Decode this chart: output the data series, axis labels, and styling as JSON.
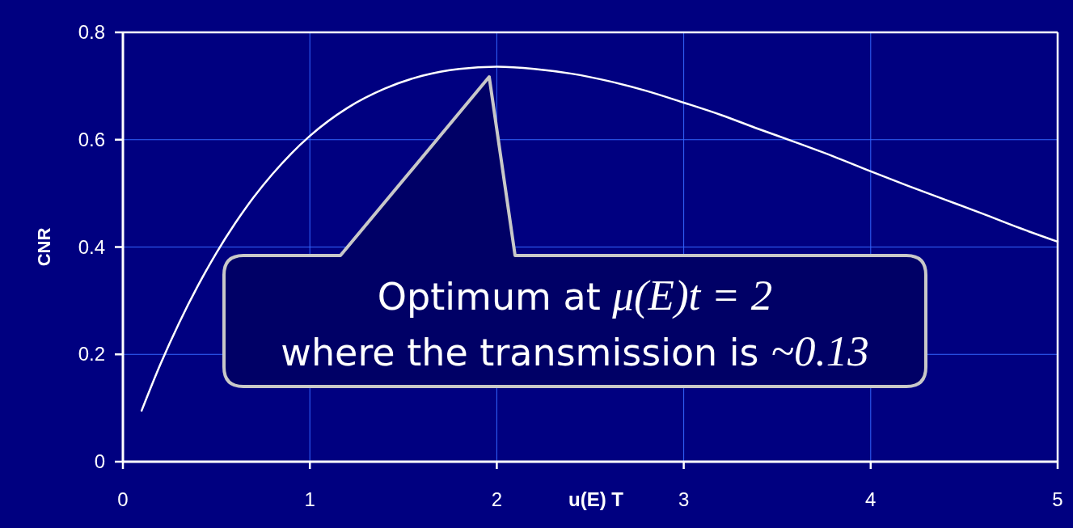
{
  "chart_data": {
    "type": "line",
    "xlabel": "u(E) T",
    "ylabel": "CNR",
    "xlim": [
      0,
      5
    ],
    "ylim": [
      0,
      0.8
    ],
    "xticks": [
      0,
      1,
      2,
      3,
      4,
      5
    ],
    "yticks": [
      0,
      0.2,
      0.4,
      0.6,
      0.8
    ],
    "grid": true,
    "x": [
      0.1,
      0.2,
      0.3,
      0.4,
      0.5,
      0.6,
      0.7,
      0.8,
      0.9,
      1.0,
      1.2,
      1.4,
      1.6,
      1.8,
      2.0,
      2.2,
      2.4,
      2.6,
      2.8,
      3.0,
      3.2,
      3.4,
      3.6,
      3.8,
      4.0,
      4.2,
      4.4,
      4.6,
      4.8,
      5.0
    ],
    "series": [
      {
        "color": "#ffffff",
        "values": [
          0.095,
          0.181,
          0.258,
          0.327,
          0.389,
          0.444,
          0.493,
          0.536,
          0.574,
          0.607,
          0.659,
          0.695,
          0.719,
          0.732,
          0.736,
          0.732,
          0.723,
          0.709,
          0.691,
          0.669,
          0.646,
          0.62,
          0.595,
          0.569,
          0.541,
          0.514,
          0.488,
          0.462,
          0.435,
          0.41
        ]
      }
    ],
    "annotations": [
      "Optimum at μ(E)t = 2",
      "where the transmission is ~0.13"
    ]
  }
}
